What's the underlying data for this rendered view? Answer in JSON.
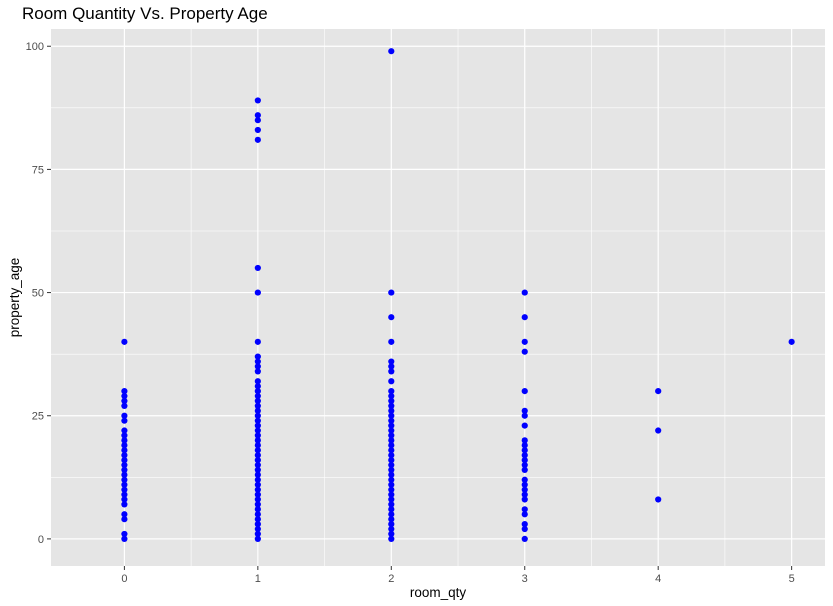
{
  "chart_data": {
    "type": "scatter",
    "title": "Room Quantity Vs. Property Age",
    "xlabel": "room_qty",
    "ylabel": "property_age",
    "xlim": [
      -0.55,
      5.25
    ],
    "ylim": [
      -5.5,
      103.5
    ],
    "xticks": [
      0,
      1,
      2,
      3,
      4,
      5
    ],
    "yticks": [
      0,
      25,
      50,
      75,
      100
    ],
    "grid": true,
    "point_color": "#0000ff",
    "panel_background": "#e5e5e5",
    "grid_color": "#ffffff",
    "series": [
      {
        "points": [
          {
            "x": 0,
            "y": 40
          },
          {
            "x": 0,
            "y": 30
          },
          {
            "x": 0,
            "y": 29
          },
          {
            "x": 0,
            "y": 28
          },
          {
            "x": 0,
            "y": 27
          },
          {
            "x": 0,
            "y": 25
          },
          {
            "x": 0,
            "y": 24
          },
          {
            "x": 0,
            "y": 22
          },
          {
            "x": 0,
            "y": 21
          },
          {
            "x": 0,
            "y": 20
          },
          {
            "x": 0,
            "y": 19
          },
          {
            "x": 0,
            "y": 18
          },
          {
            "x": 0,
            "y": 17
          },
          {
            "x": 0,
            "y": 16
          },
          {
            "x": 0,
            "y": 15
          },
          {
            "x": 0,
            "y": 14
          },
          {
            "x": 0,
            "y": 13
          },
          {
            "x": 0,
            "y": 12
          },
          {
            "x": 0,
            "y": 11
          },
          {
            "x": 0,
            "y": 10
          },
          {
            "x": 0,
            "y": 9
          },
          {
            "x": 0,
            "y": 8
          },
          {
            "x": 0,
            "y": 7
          },
          {
            "x": 0,
            "y": 5
          },
          {
            "x": 0,
            "y": 4
          },
          {
            "x": 0,
            "y": 1
          },
          {
            "x": 0,
            "y": 0
          },
          {
            "x": 1,
            "y": 89
          },
          {
            "x": 1,
            "y": 86
          },
          {
            "x": 1,
            "y": 85
          },
          {
            "x": 1,
            "y": 83
          },
          {
            "x": 1,
            "y": 81
          },
          {
            "x": 1,
            "y": 55
          },
          {
            "x": 1,
            "y": 50
          },
          {
            "x": 1,
            "y": 40
          },
          {
            "x": 1,
            "y": 37
          },
          {
            "x": 1,
            "y": 36
          },
          {
            "x": 1,
            "y": 35
          },
          {
            "x": 1,
            "y": 34
          },
          {
            "x": 1,
            "y": 32
          },
          {
            "x": 1,
            "y": 31
          },
          {
            "x": 1,
            "y": 30
          },
          {
            "x": 1,
            "y": 29
          },
          {
            "x": 1,
            "y": 28
          },
          {
            "x": 1,
            "y": 27
          },
          {
            "x": 1,
            "y": 26
          },
          {
            "x": 1,
            "y": 25
          },
          {
            "x": 1,
            "y": 24
          },
          {
            "x": 1,
            "y": 23
          },
          {
            "x": 1,
            "y": 22
          },
          {
            "x": 1,
            "y": 21
          },
          {
            "x": 1,
            "y": 20
          },
          {
            "x": 1,
            "y": 19
          },
          {
            "x": 1,
            "y": 18
          },
          {
            "x": 1,
            "y": 17
          },
          {
            "x": 1,
            "y": 16
          },
          {
            "x": 1,
            "y": 15
          },
          {
            "x": 1,
            "y": 14
          },
          {
            "x": 1,
            "y": 13
          },
          {
            "x": 1,
            "y": 12
          },
          {
            "x": 1,
            "y": 11
          },
          {
            "x": 1,
            "y": 10
          },
          {
            "x": 1,
            "y": 9
          },
          {
            "x": 1,
            "y": 8
          },
          {
            "x": 1,
            "y": 7
          },
          {
            "x": 1,
            "y": 6
          },
          {
            "x": 1,
            "y": 5
          },
          {
            "x": 1,
            "y": 4
          },
          {
            "x": 1,
            "y": 3
          },
          {
            "x": 1,
            "y": 2
          },
          {
            "x": 1,
            "y": 1
          },
          {
            "x": 1,
            "y": 0
          },
          {
            "x": 2,
            "y": 99
          },
          {
            "x": 2,
            "y": 50
          },
          {
            "x": 2,
            "y": 45
          },
          {
            "x": 2,
            "y": 40
          },
          {
            "x": 2,
            "y": 36
          },
          {
            "x": 2,
            "y": 35
          },
          {
            "x": 2,
            "y": 34
          },
          {
            "x": 2,
            "y": 32
          },
          {
            "x": 2,
            "y": 30
          },
          {
            "x": 2,
            "y": 29
          },
          {
            "x": 2,
            "y": 28
          },
          {
            "x": 2,
            "y": 27
          },
          {
            "x": 2,
            "y": 26
          },
          {
            "x": 2,
            "y": 25
          },
          {
            "x": 2,
            "y": 24
          },
          {
            "x": 2,
            "y": 23
          },
          {
            "x": 2,
            "y": 22
          },
          {
            "x": 2,
            "y": 21
          },
          {
            "x": 2,
            "y": 20
          },
          {
            "x": 2,
            "y": 19
          },
          {
            "x": 2,
            "y": 18
          },
          {
            "x": 2,
            "y": 17
          },
          {
            "x": 2,
            "y": 16
          },
          {
            "x": 2,
            "y": 15
          },
          {
            "x": 2,
            "y": 14
          },
          {
            "x": 2,
            "y": 13
          },
          {
            "x": 2,
            "y": 12
          },
          {
            "x": 2,
            "y": 11
          },
          {
            "x": 2,
            "y": 10
          },
          {
            "x": 2,
            "y": 9
          },
          {
            "x": 2,
            "y": 8
          },
          {
            "x": 2,
            "y": 7
          },
          {
            "x": 2,
            "y": 6
          },
          {
            "x": 2,
            "y": 5
          },
          {
            "x": 2,
            "y": 4
          },
          {
            "x": 2,
            "y": 3
          },
          {
            "x": 2,
            "y": 2
          },
          {
            "x": 2,
            "y": 1
          },
          {
            "x": 2,
            "y": 0
          },
          {
            "x": 3,
            "y": 50
          },
          {
            "x": 3,
            "y": 45
          },
          {
            "x": 3,
            "y": 40
          },
          {
            "x": 3,
            "y": 38
          },
          {
            "x": 3,
            "y": 30
          },
          {
            "x": 3,
            "y": 26
          },
          {
            "x": 3,
            "y": 25
          },
          {
            "x": 3,
            "y": 23
          },
          {
            "x": 3,
            "y": 20
          },
          {
            "x": 3,
            "y": 19
          },
          {
            "x": 3,
            "y": 18
          },
          {
            "x": 3,
            "y": 17
          },
          {
            "x": 3,
            "y": 16
          },
          {
            "x": 3,
            "y": 15
          },
          {
            "x": 3,
            "y": 14
          },
          {
            "x": 3,
            "y": 12
          },
          {
            "x": 3,
            "y": 11
          },
          {
            "x": 3,
            "y": 10
          },
          {
            "x": 3,
            "y": 9
          },
          {
            "x": 3,
            "y": 8
          },
          {
            "x": 3,
            "y": 6
          },
          {
            "x": 3,
            "y": 5
          },
          {
            "x": 3,
            "y": 3
          },
          {
            "x": 3,
            "y": 2
          },
          {
            "x": 3,
            "y": 0
          },
          {
            "x": 4,
            "y": 30
          },
          {
            "x": 4,
            "y": 22
          },
          {
            "x": 4,
            "y": 8
          },
          {
            "x": 5,
            "y": 40
          }
        ]
      }
    ]
  }
}
